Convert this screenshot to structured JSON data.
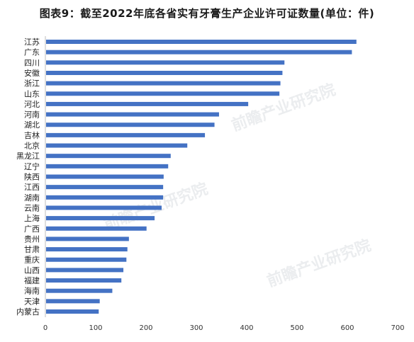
{
  "chart_data": {
    "type": "bar",
    "orientation": "horizontal",
    "title": "图表9：截至2022年底各省实有牙膏生产企业许可证数量(单位：件)",
    "xlabel": "",
    "ylabel": "",
    "xlim": [
      0,
      700
    ],
    "xticks": [
      0,
      100,
      200,
      300,
      400,
      500,
      600,
      700
    ],
    "grid": false,
    "bar_color": "#4472C4",
    "categories": [
      "江苏",
      "广东",
      "四川",
      "安徽",
      "浙江",
      "山东",
      "河北",
      "河南",
      "湖北",
      "吉林",
      "北京",
      "黑龙江",
      "辽宁",
      "陕西",
      "江西",
      "湖南",
      "云南",
      "上海",
      "广西",
      "贵州",
      "甘肃",
      "重庆",
      "山西",
      "福建",
      "海南",
      "天津",
      "内蒙古"
    ],
    "values": [
      618,
      609,
      475,
      471,
      467,
      465,
      403,
      345,
      336,
      317,
      282,
      249,
      244,
      235,
      234,
      234,
      231,
      217,
      201,
      166,
      163,
      161,
      155,
      151,
      133,
      108,
      106
    ]
  },
  "watermark": {
    "text": "前瞻产业研究院",
    "color": "#c8cdd3"
  }
}
